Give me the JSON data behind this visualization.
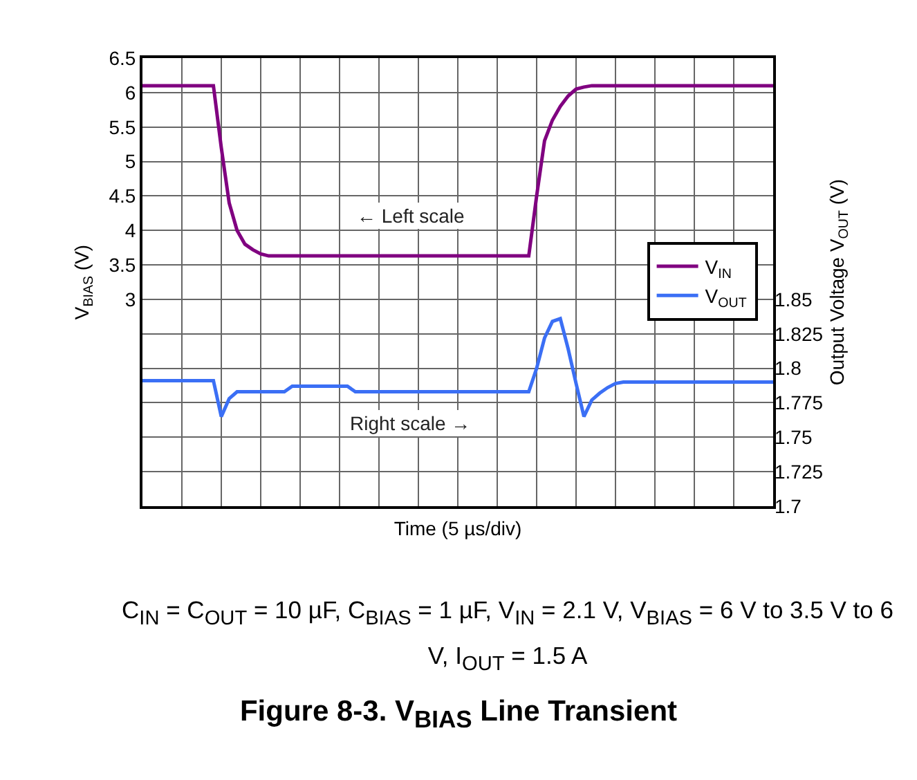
{
  "chart_data": {
    "type": "line",
    "title": "Figure 8-3. V$_{BIAS}$ Line Transient",
    "xlabel": "Time (5 µs/div)",
    "ylabel": "V$_{BIAS}$ (V)",
    "y2label": "Output Voltage V$_{OUT}$ (V)",
    "annotations": [
      "← Left scale",
      "Right scale →",
      "C$_{IN}$ = C$_{OUT}$ = 10 µF, C$_{BIAS}$ = 1 µF, V$_{IN}$ = 2.1 V, V$_{BIAS}$ = 6 V to 3.5 V to 6 V, I$_{OUT}$ = 1.5 A"
    ],
    "categories": [
      null,
      null,
      null,
      null,
      null,
      null,
      null,
      null,
      null,
      null,
      null,
      null,
      null,
      null,
      null,
      null,
      null,
      null,
      null,
      null,
      null,
      null,
      null,
      null,
      null,
      null,
      null,
      null,
      null,
      null,
      null,
      null,
      null,
      null,
      null,
      null,
      null,
      null,
      null,
      null,
      null,
      null,
      null,
      null,
      null,
      null,
      null,
      null,
      null,
      null,
      null,
      null,
      null,
      null,
      null,
      null,
      null,
      null,
      null,
      null,
      null,
      null,
      null,
      null,
      null,
      null,
      null,
      null,
      null,
      null,
      null,
      null,
      null,
      null,
      null,
      null,
      null,
      null,
      null,
      null,
      null
    ],
    "series": [
      {
        "name": "V$_{IN}$",
        "color": "#800080",
        "values": [
          6.1,
          6.1,
          6.1,
          6.1,
          6.1,
          6.1,
          6.1,
          6.1,
          6.1,
          6.1,
          5.2,
          4.4,
          4.0,
          3.8,
          3.72,
          3.66,
          3.63,
          3.63,
          3.63,
          3.63,
          3.63,
          3.63,
          3.63,
          3.63,
          3.63,
          3.63,
          3.63,
          3.63,
          3.63,
          3.63,
          3.63,
          3.63,
          3.63,
          3.63,
          3.63,
          3.63,
          3.63,
          3.63,
          3.63,
          3.63,
          3.63,
          3.63,
          3.63,
          3.63,
          3.63,
          3.63,
          3.63,
          3.63,
          3.63,
          3.63,
          4.5,
          5.3,
          5.6,
          5.8,
          5.95,
          6.05,
          6.08,
          6.1,
          6.1,
          6.1,
          6.1,
          6.1,
          6.1,
          6.1,
          6.1,
          6.1,
          6.1,
          6.1,
          6.1,
          6.1,
          6.1,
          6.1,
          6.1,
          6.1,
          6.1,
          6.1,
          6.1,
          6.1,
          6.1,
          6.1,
          6.1
        ]
      },
      {
        "name": "V$_{OUT}$",
        "color": "#3b6ff5",
        "axis": "y2",
        "values": [
          1.791,
          1.791,
          1.791,
          1.791,
          1.791,
          1.791,
          1.791,
          1.791,
          1.791,
          1.791,
          1.765,
          1.778,
          1.783,
          1.783,
          1.783,
          1.783,
          1.783,
          1.783,
          1.783,
          1.787,
          1.787,
          1.787,
          1.787,
          1.787,
          1.787,
          1.787,
          1.787,
          1.783,
          1.783,
          1.783,
          1.783,
          1.783,
          1.783,
          1.783,
          1.783,
          1.783,
          1.783,
          1.783,
          1.783,
          1.783,
          1.783,
          1.783,
          1.783,
          1.783,
          1.783,
          1.783,
          1.783,
          1.783,
          1.783,
          1.783,
          1.8,
          1.822,
          1.834,
          1.836,
          1.814,
          1.789,
          1.765,
          1.777,
          1.782,
          1.786,
          1.789,
          1.79,
          1.79,
          1.79,
          1.79,
          1.79,
          1.79,
          1.79,
          1.79,
          1.79,
          1.79,
          1.79,
          1.79,
          1.79,
          1.79,
          1.79,
          1.79,
          1.79,
          1.79,
          1.79,
          1.79
        ]
      }
    ],
    "ylim": [
      0,
      6.5
    ],
    "yticks": [
      {
        "value": 0,
        "label": null
      },
      {
        "value": 0.5,
        "label": null
      },
      {
        "value": 1,
        "label": null
      },
      {
        "value": 1.5,
        "label": null
      },
      {
        "value": 2,
        "label": null
      },
      {
        "value": 2.5,
        "label": null
      },
      3,
      3.5,
      4,
      4.5,
      5,
      5.5,
      6,
      6.5
    ],
    "y2lim": [
      1.7,
      2.025
    ],
    "y2ticks": [
      1.7,
      1.725,
      1.75,
      1.775,
      1.8,
      1.825,
      1.85
    ],
    "grid": true,
    "legend": "right",
    "line_style": "solid",
    "marker": "none"
  }
}
